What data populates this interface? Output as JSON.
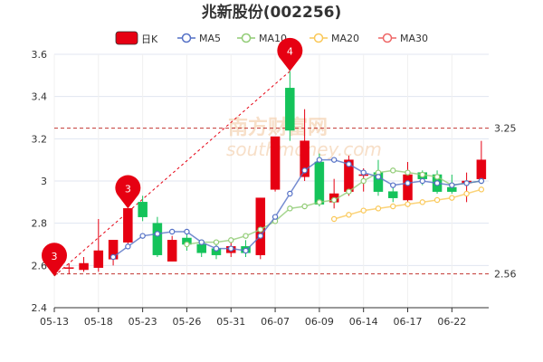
{
  "chart_data": {
    "type": "candlestick",
    "title": "兆新股份(002256)",
    "legend": {
      "placement": "top",
      "entries": [
        {
          "key": "k",
          "label": "日K",
          "color": "#e60012"
        },
        {
          "key": "ma5",
          "label": "MA5",
          "color": "#5470c6"
        },
        {
          "key": "ma10",
          "label": "MA10",
          "color": "#91cc75"
        },
        {
          "key": "ma20",
          "label": "MA20",
          "color": "#fac858"
        },
        {
          "key": "ma30",
          "label": "MA30",
          "color": "#ee6666"
        }
      ]
    },
    "ylim": [
      2.4,
      3.6
    ],
    "yticks": [
      "2.4",
      "2.6",
      "2.8",
      "3",
      "3.2",
      "3.4",
      "3.6"
    ],
    "xtick_labels": [
      "05-13",
      "05-18",
      "05-23",
      "05-26",
      "05-31",
      "06-07",
      "06-09",
      "06-14",
      "06-17",
      "06-22"
    ],
    "xtick_indices": [
      0,
      3,
      6,
      9,
      12,
      15,
      18,
      21,
      24,
      27
    ],
    "grid": true,
    "colors": {
      "up": "#e60012",
      "down": "#14c35a",
      "ref_line": "#c23531",
      "marker": "#e60012",
      "trend": "#e60012"
    },
    "candles": [
      {
        "date": "05-13",
        "open": 2.6,
        "close": 2.59,
        "high": 2.62,
        "low": 2.55
      },
      {
        "date": "05-16",
        "open": 2.59,
        "close": 2.59,
        "high": 2.61,
        "low": 2.56
      },
      {
        "date": "05-17",
        "open": 2.58,
        "close": 2.61,
        "high": 2.64,
        "low": 2.57
      },
      {
        "date": "05-18",
        "open": 2.59,
        "close": 2.67,
        "high": 2.82,
        "low": 2.57
      },
      {
        "date": "05-19",
        "open": 2.63,
        "close": 2.72,
        "high": 2.72,
        "low": 2.6
      },
      {
        "date": "05-20",
        "open": 2.71,
        "close": 2.87,
        "high": 2.87,
        "low": 2.7
      },
      {
        "date": "05-23",
        "open": 2.9,
        "close": 2.83,
        "high": 2.93,
        "low": 2.81
      },
      {
        "date": "05-24",
        "open": 2.8,
        "close": 2.65,
        "high": 2.83,
        "low": 2.64
      },
      {
        "date": "05-25",
        "open": 2.62,
        "close": 2.72,
        "high": 2.74,
        "low": 2.62
      },
      {
        "date": "05-26",
        "open": 2.73,
        "close": 2.7,
        "high": 2.75,
        "low": 2.67
      },
      {
        "date": "05-27",
        "open": 2.7,
        "close": 2.66,
        "high": 2.72,
        "low": 2.64
      },
      {
        "date": "05-30",
        "open": 2.68,
        "close": 2.65,
        "high": 2.7,
        "low": 2.63
      },
      {
        "date": "05-31",
        "open": 2.66,
        "close": 2.69,
        "high": 2.72,
        "low": 2.64
      },
      {
        "date": "06-01",
        "open": 2.69,
        "close": 2.66,
        "high": 2.72,
        "low": 2.64
      },
      {
        "date": "06-02",
        "open": 2.65,
        "close": 2.92,
        "high": 2.92,
        "low": 2.63
      },
      {
        "date": "06-06",
        "open": 2.96,
        "close": 3.21,
        "high": 3.21,
        "low": 2.95
      },
      {
        "date": "06-07",
        "open": 3.44,
        "close": 3.24,
        "high": 3.52,
        "low": 3.19
      },
      {
        "date": "06-08",
        "open": 3.02,
        "close": 3.19,
        "high": 3.34,
        "low": 3.0
      },
      {
        "date": "06-09",
        "open": 3.09,
        "close": 2.89,
        "high": 3.13,
        "low": 2.88
      },
      {
        "date": "06-10",
        "open": 2.9,
        "close": 2.94,
        "high": 3.01,
        "low": 2.87
      },
      {
        "date": "06-13",
        "open": 2.95,
        "close": 3.1,
        "high": 3.12,
        "low": 2.93
      },
      {
        "date": "06-14",
        "open": 3.03,
        "close": 3.03,
        "high": 3.06,
        "low": 2.95
      },
      {
        "date": "06-15",
        "open": 3.04,
        "close": 2.95,
        "high": 3.1,
        "low": 2.93
      },
      {
        "date": "06-16",
        "open": 2.95,
        "close": 2.92,
        "high": 2.97,
        "low": 2.9
      },
      {
        "date": "06-17",
        "open": 2.91,
        "close": 3.03,
        "high": 3.09,
        "low": 2.9
      },
      {
        "date": "06-20",
        "open": 3.04,
        "close": 3.01,
        "high": 3.05,
        "low": 2.98
      },
      {
        "date": "06-21",
        "open": 3.03,
        "close": 2.95,
        "high": 3.05,
        "low": 2.94
      },
      {
        "date": "06-22",
        "open": 2.97,
        "close": 2.95,
        "high": 3.03,
        "low": 2.94
      },
      {
        "date": "06-23",
        "open": 2.99,
        "close": 3.0,
        "high": 3.04,
        "low": 2.9
      },
      {
        "date": "06-24",
        "open": 3.01,
        "close": 3.1,
        "high": 3.19,
        "low": 3.0
      }
    ],
    "ma5": [
      null,
      null,
      null,
      null,
      2.64,
      2.69,
      2.74,
      2.75,
      2.76,
      2.76,
      2.71,
      2.68,
      2.68,
      2.67,
      2.74,
      2.83,
      2.94,
      3.05,
      3.1,
      3.1,
      3.08,
      3.04,
      3.02,
      2.98,
      2.99,
      3.0,
      2.99,
      2.98,
      2.99,
      3.0
    ],
    "ma10": [
      null,
      null,
      null,
      null,
      null,
      null,
      null,
      null,
      null,
      2.7,
      2.71,
      2.71,
      2.72,
      2.74,
      2.77,
      2.81,
      2.87,
      2.88,
      2.9,
      2.91,
      2.95,
      3.0,
      3.04,
      3.05,
      3.04,
      3.03,
      3.02,
      2.98,
      2.99,
      3.0
    ],
    "ma20": [
      null,
      null,
      null,
      null,
      null,
      null,
      null,
      null,
      null,
      null,
      null,
      null,
      null,
      null,
      null,
      null,
      null,
      null,
      null,
      2.82,
      2.84,
      2.86,
      2.87,
      2.88,
      2.89,
      2.9,
      2.91,
      2.92,
      2.94,
      2.96
    ],
    "ma30": [],
    "ref_lines": [
      {
        "value": 3.25,
        "label": "3.25"
      },
      {
        "value": 2.56,
        "label": "2.56"
      }
    ],
    "markers": [
      {
        "index": 0,
        "value": 2.55,
        "label": "3"
      },
      {
        "index": 5,
        "value": 2.87,
        "label": "3"
      },
      {
        "index": 16,
        "value": 3.52,
        "label": "4"
      }
    ],
    "trend_line": {
      "from_index": 0,
      "from_value": 2.55,
      "to_index": 16,
      "to_value": 3.52
    }
  },
  "watermark": {
    "text": "南方财富网",
    "sub": "southmoney.com"
  }
}
